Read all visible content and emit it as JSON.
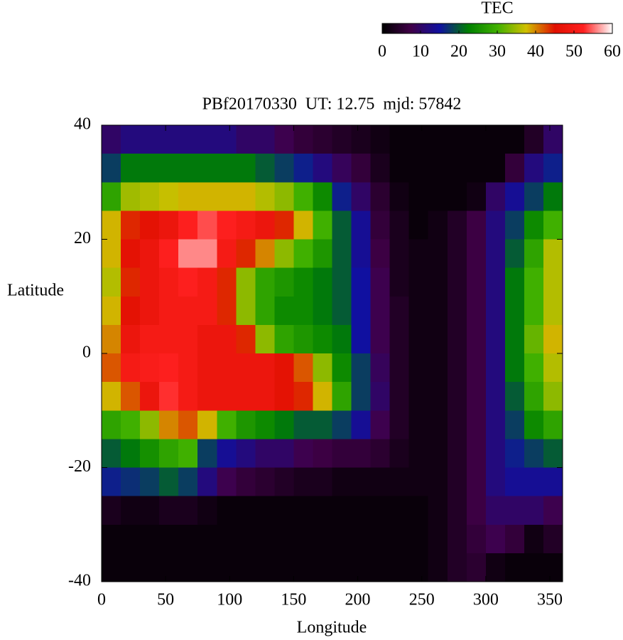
{
  "chart_data": {
    "type": "heatmap",
    "title": "PBf20170330  UT: 12.75  mjd: 57842",
    "xlabel": "Longitude",
    "ylabel": "Latitude",
    "colorbar_title": "TEC",
    "xlim": [
      0,
      360
    ],
    "xticks": [
      0,
      50,
      100,
      150,
      200,
      250,
      300,
      350
    ],
    "ylim": [
      -40,
      40
    ],
    "yticks": [
      -40,
      -20,
      0,
      20,
      40
    ],
    "zlim": [
      0,
      60
    ],
    "zticks": [
      0,
      10,
      20,
      30,
      40,
      50,
      60
    ],
    "colorscale": [
      "#000000",
      "#400048",
      "#1010a0",
      "#008000",
      "#40b000",
      "#d0c000",
      "#e01000",
      "#ff2020",
      "#ffffff"
    ],
    "grid": false,
    "x": [
      7.5,
      22.5,
      37.5,
      52.5,
      67.5,
      82.5,
      97.5,
      112.5,
      127.5,
      142.5,
      157.5,
      172.5,
      187.5,
      202.5,
      217.5,
      232.5,
      247.5,
      262.5,
      277.5,
      292.5,
      307.5,
      322.5,
      337.5,
      352.5
    ],
    "y": [
      37.5,
      32.5,
      27.5,
      22.5,
      17.5,
      12.5,
      7.5,
      2.5,
      -2.5,
      -7.5,
      -12.5,
      -17.5,
      -22.5,
      -27.5,
      -32.5,
      -37.5
    ],
    "z": [
      [
        10,
        18,
        28,
        38,
        38,
        36,
        38,
        40,
        42,
        38,
        28,
        20,
        16,
        3,
        1,
        1
      ],
      [
        12,
        22,
        35,
        44,
        46,
        44,
        46,
        48,
        50,
        42,
        30,
        22,
        17,
        2,
        1,
        1
      ],
      [
        12,
        22,
        36,
        46,
        48,
        48,
        48,
        50,
        51,
        48,
        34,
        25,
        18,
        2,
        1,
        1
      ],
      [
        12,
        22,
        37,
        48,
        52,
        50,
        50,
        50,
        52,
        53,
        40,
        28,
        20,
        3,
        1,
        1
      ],
      [
        12,
        22,
        38,
        52,
        56,
        52,
        50,
        50,
        50,
        50,
        42,
        30,
        18,
        3,
        1,
        1
      ],
      [
        12,
        22,
        38,
        54,
        56,
        50,
        50,
        48,
        48,
        48,
        38,
        18,
        12,
        2,
        1,
        1
      ],
      [
        12,
        22,
        38,
        52,
        50,
        44,
        44,
        48,
        48,
        48,
        30,
        14,
        8,
        1,
        1,
        1
      ],
      [
        10,
        22,
        38,
        50,
        44,
        34,
        34,
        44,
        48,
        48,
        26,
        12,
        6,
        1,
        1,
        1
      ],
      [
        10,
        20,
        36,
        48,
        40,
        28,
        28,
        34,
        48,
        48,
        24,
        10,
        5,
        1,
        1,
        1
      ],
      [
        8,
        18,
        34,
        44,
        34,
        26,
        24,
        28,
        46,
        46,
        22,
        10,
        4,
        1,
        1,
        1
      ],
      [
        6,
        16,
        30,
        38,
        30,
        24,
        24,
        26,
        42,
        44,
        20,
        8,
        3,
        1,
        1,
        1
      ],
      [
        5,
        12,
        24,
        30,
        26,
        22,
        22,
        24,
        34,
        38,
        20,
        7,
        3,
        1,
        1,
        1
      ],
      [
        4,
        9,
        16,
        20,
        20,
        20,
        20,
        22,
        24,
        28,
        18,
        6,
        2,
        1,
        1,
        1
      ],
      [
        3,
        6,
        10,
        14,
        14,
        15,
        15,
        15,
        18,
        18,
        14,
        6,
        2,
        1,
        1,
        1
      ],
      [
        2,
        3,
        5,
        6,
        7,
        8,
        8,
        8,
        9,
        10,
        8,
        5,
        2,
        1,
        1,
        1
      ],
      [
        1,
        1,
        2,
        3,
        3,
        3,
        4,
        4,
        4,
        4,
        4,
        3,
        2,
        1,
        1,
        1
      ],
      [
        1,
        1,
        1,
        1,
        2,
        2,
        2,
        2,
        2,
        2,
        2,
        2,
        2,
        1,
        1,
        1
      ],
      [
        1,
        1,
        1,
        2,
        2,
        2,
        2,
        2,
        2,
        2,
        2,
        2,
        2,
        2,
        2,
        2
      ],
      [
        1,
        1,
        1,
        4,
        4,
        4,
        4,
        4,
        4,
        4,
        4,
        4,
        4,
        4,
        4,
        4
      ],
      [
        1,
        1,
        2,
        7,
        7,
        7,
        7,
        7,
        7,
        7,
        7,
        7,
        7,
        7,
        6,
        5
      ],
      [
        1,
        1,
        10,
        12,
        12,
        12,
        12,
        12,
        12,
        12,
        12,
        12,
        12,
        10,
        8,
        2
      ],
      [
        1,
        6,
        14,
        18,
        20,
        22,
        22,
        22,
        22,
        20,
        18,
        16,
        14,
        10,
        6,
        1
      ],
      [
        4,
        12,
        18,
        24,
        28,
        30,
        30,
        32,
        30,
        28,
        24,
        18,
        14,
        10,
        2,
        1
      ],
      [
        10,
        16,
        22,
        30,
        36,
        36,
        36,
        38,
        36,
        34,
        28,
        20,
        14,
        8,
        4,
        1
      ]
    ]
  }
}
